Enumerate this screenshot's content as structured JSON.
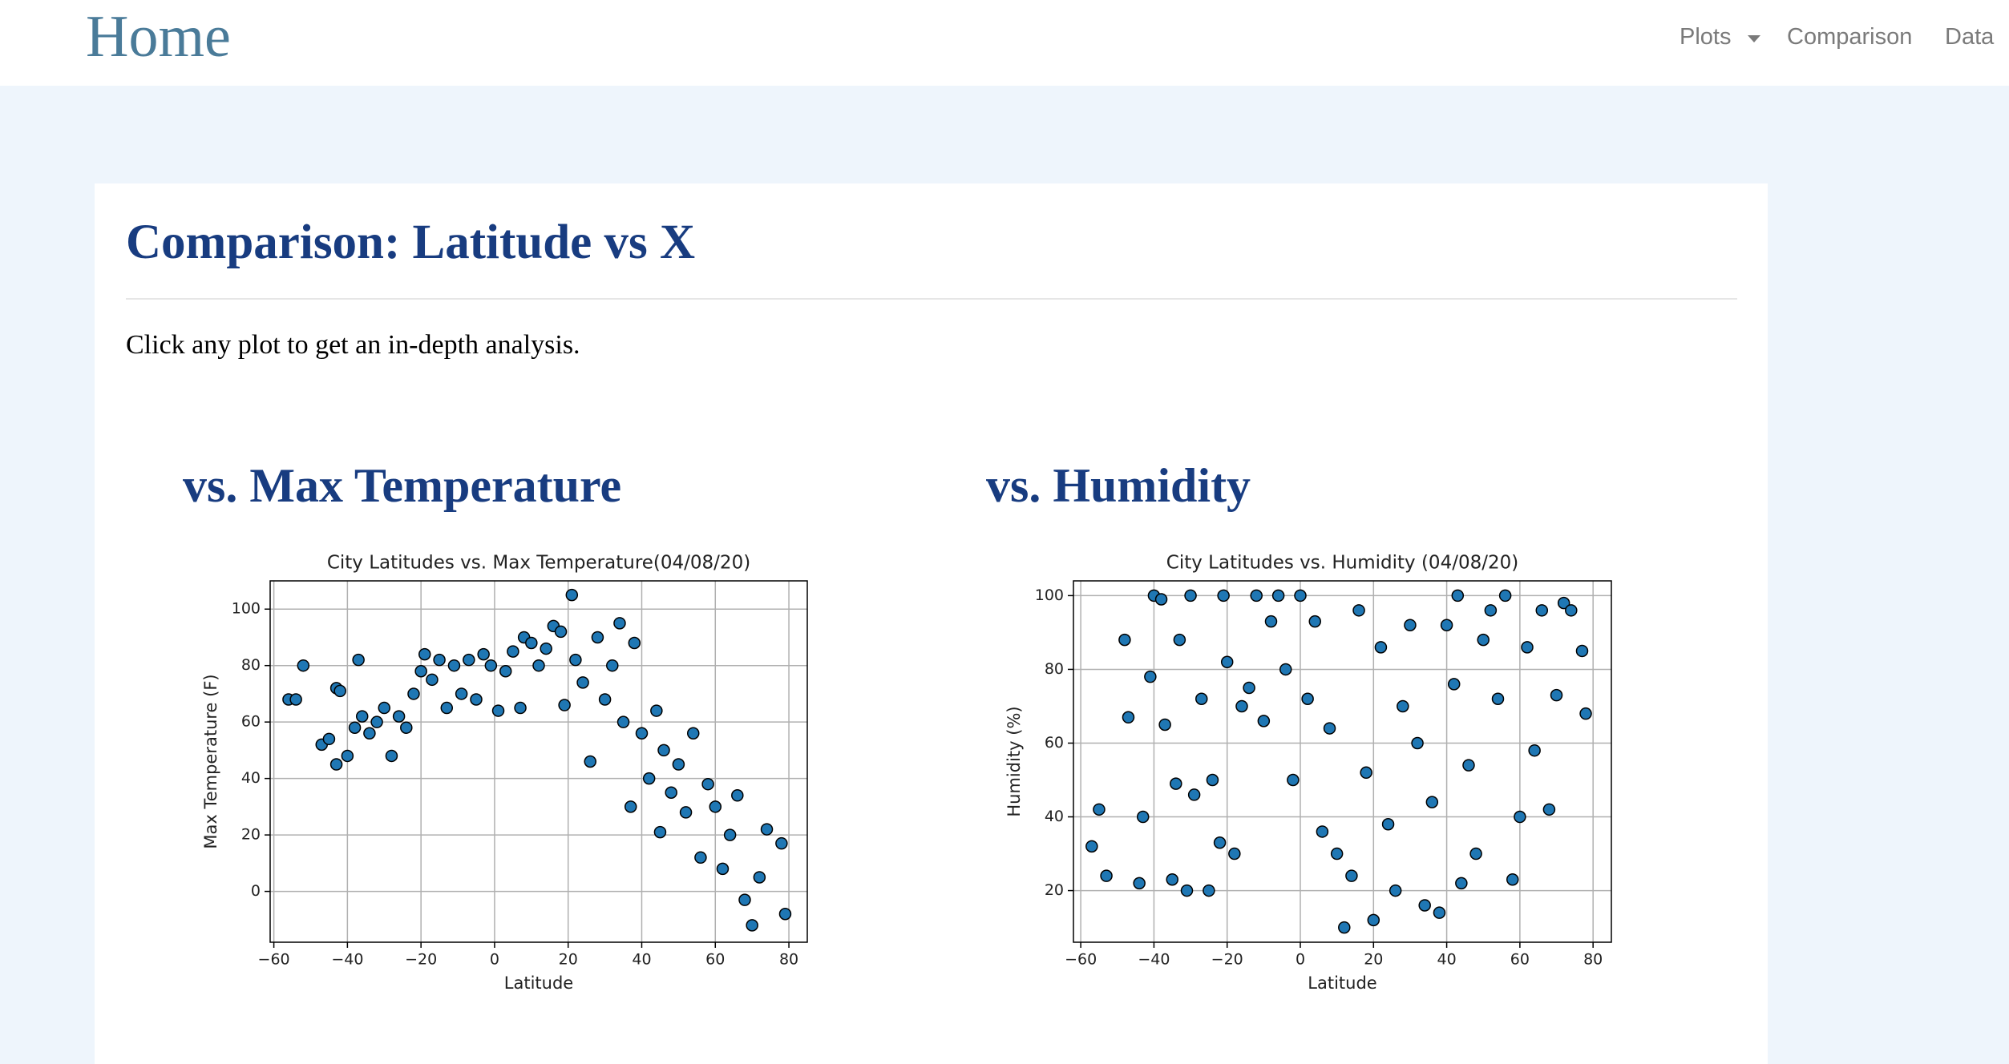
{
  "navbar": {
    "brand": "Home",
    "links": [
      "Plots",
      "Comparison",
      "Data"
    ]
  },
  "page": {
    "heading": "Comparison: Latitude vs X",
    "intro": "Click any plot to get an in-depth analysis."
  },
  "sections": [
    {
      "heading": "vs. Max Temperature",
      "chart_data": {
        "type": "scatter",
        "title": "City Latitudes vs. Max Temperature(04/08/20)",
        "x_label": "Latitude",
        "y_label": "Max Temperature (F)",
        "color": "#1f77b4",
        "grid": true,
        "xlim": [
          -61,
          85
        ],
        "ylim": [
          -18,
          110
        ],
        "xticks": [
          {
            "value": -60,
            "label": "−60"
          },
          {
            "value": -40,
            "label": "−40"
          },
          {
            "value": -20,
            "label": "−20"
          },
          0,
          20,
          40,
          60,
          80
        ],
        "yticks": [
          0,
          20,
          40,
          60,
          80,
          100
        ],
        "x": [
          -56,
          -54,
          -52,
          -47,
          -45,
          -43,
          -42,
          -43,
          -40,
          -38,
          -37,
          -36,
          -34,
          -32,
          -30,
          -28,
          -26,
          -24,
          -22,
          -20,
          -19,
          -17,
          -15,
          -13,
          -11,
          -9,
          -7,
          -5,
          -3,
          -1,
          1,
          3,
          5,
          7,
          8,
          10,
          12,
          14,
          16,
          18,
          19,
          21,
          22,
          24,
          26,
          28,
          30,
          32,
          34,
          35,
          37,
          38,
          40,
          42,
          44,
          45,
          46,
          48,
          50,
          52,
          54,
          56,
          58,
          60,
          62,
          64,
          66,
          68,
          70,
          72,
          74,
          78,
          79
        ],
        "values": [
          68,
          68,
          80,
          52,
          54,
          72,
          71,
          45,
          48,
          58,
          82,
          62,
          56,
          60,
          65,
          48,
          62,
          58,
          70,
          78,
          84,
          75,
          82,
          65,
          80,
          70,
          82,
          68,
          84,
          80,
          64,
          78,
          85,
          65,
          90,
          88,
          80,
          86,
          94,
          92,
          66,
          105,
          82,
          74,
          46,
          90,
          68,
          80,
          95,
          60,
          30,
          88,
          56,
          40,
          64,
          21,
          50,
          35,
          45,
          28,
          56,
          12,
          38,
          30,
          8,
          20,
          34,
          -3,
          -12,
          5,
          22,
          17,
          -8
        ]
      }
    },
    {
      "heading": "vs. Humidity",
      "chart_data": {
        "type": "scatter",
        "title": "City Latitudes vs. Humidity (04/08/20)",
        "x_label": "Latitude",
        "y_label": "Humidity (%)",
        "color": "#1f77b4",
        "grid": true,
        "xlim": [
          -62,
          85
        ],
        "ylim": [
          6,
          104
        ],
        "xticks": [
          {
            "value": -60,
            "label": "−60"
          },
          {
            "value": -40,
            "label": "−40"
          },
          {
            "value": -20,
            "label": "−20"
          },
          0,
          20,
          40,
          60,
          80
        ],
        "yticks": [
          20,
          40,
          60,
          80,
          100
        ],
        "x": [
          -57,
          -55,
          -53,
          -48,
          -47,
          -44,
          -43,
          -41,
          -40,
          -38,
          -37,
          -35,
          -34,
          -33,
          -31,
          -30,
          -29,
          -27,
          -25,
          -24,
          -22,
          -21,
          -20,
          -18,
          -16,
          -14,
          -12,
          -10,
          -8,
          -6,
          -4,
          -2,
          0,
          2,
          4,
          6,
          8,
          10,
          12,
          14,
          16,
          18,
          20,
          22,
          24,
          26,
          28,
          30,
          32,
          34,
          36,
          38,
          40,
          42,
          43,
          44,
          46,
          48,
          50,
          52,
          54,
          56,
          58,
          60,
          62,
          64,
          66,
          68,
          70,
          72,
          74,
          77,
          78
        ],
        "values": [
          32,
          42,
          24,
          88,
          67,
          22,
          40,
          78,
          100,
          99,
          65,
          23,
          49,
          88,
          20,
          100,
          46,
          72,
          20,
          50,
          33,
          100,
          82,
          30,
          70,
          75,
          100,
          66,
          93,
          100,
          80,
          50,
          100,
          72,
          93,
          36,
          64,
          30,
          10,
          24,
          96,
          52,
          12,
          86,
          38,
          20,
          70,
          92,
          60,
          16,
          44,
          14,
          92,
          76,
          100,
          22,
          54,
          30,
          88,
          96,
          72,
          100,
          23,
          40,
          86,
          58,
          96,
          42,
          73,
          98,
          96,
          85,
          68
        ]
      }
    }
  ]
}
